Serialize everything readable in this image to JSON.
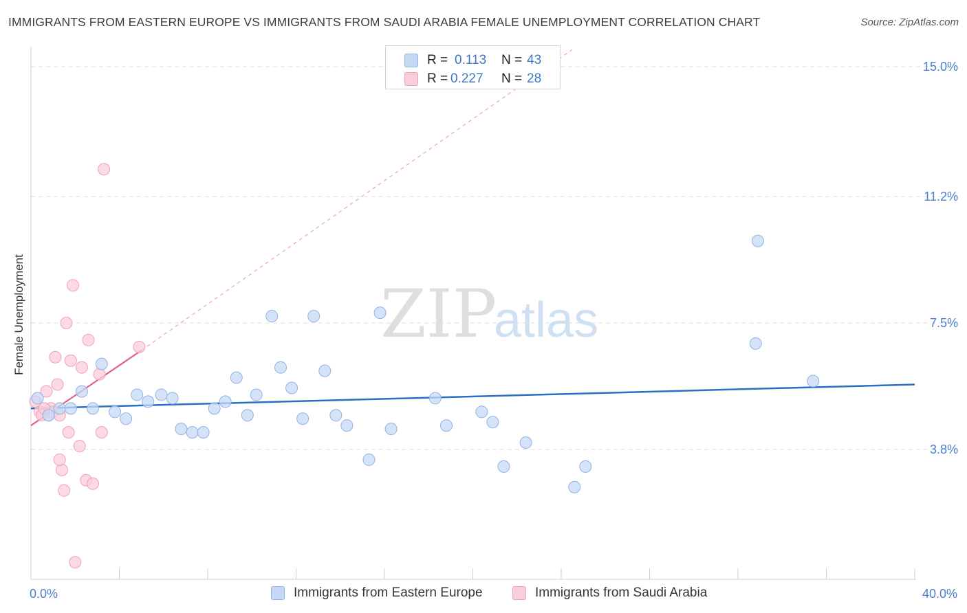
{
  "title": "IMMIGRANTS FROM EASTERN EUROPE VS IMMIGRANTS FROM SAUDI ARABIA FEMALE UNEMPLOYMENT CORRELATION CHART",
  "source": "Source: ZipAtlas.com",
  "watermark": {
    "zip": "ZIP",
    "atlas": "atlas"
  },
  "legend": {
    "r_label": "R =",
    "n_label": "N =",
    "rows": [
      {
        "r": "0.113",
        "n": "43"
      },
      {
        "r": "0.227",
        "n": "28"
      }
    ]
  },
  "colors": {
    "blue_fill": "#c5d9f5",
    "blue_stroke": "#8fb3e6",
    "blue_line": "#2b6fc4",
    "pink_fill": "#f9cdda",
    "pink_stroke": "#f0a0b8",
    "pink_line": "#e0608a"
  },
  "chart_data": {
    "type": "scatter",
    "title": "IMMIGRANTS FROM EASTERN EUROPE VS IMMIGRANTS FROM SAUDI ARABIA FEMALE UNEMPLOYMENT CORRELATION CHART",
    "xlabel": "",
    "ylabel": "Female Unemployment",
    "xlim": [
      0,
      40
    ],
    "ylim": [
      0,
      15.5
    ],
    "x_tick_labels": [
      {
        "value": 0,
        "label": "0.0%"
      },
      {
        "value": 40,
        "label": "40.0%"
      }
    ],
    "y_tick_labels": [
      {
        "value": 3.8,
        "label": "3.8%"
      },
      {
        "value": 7.5,
        "label": "7.5%"
      },
      {
        "value": 11.2,
        "label": "11.2%"
      },
      {
        "value": 15.0,
        "label": "15.0%"
      }
    ],
    "series": [
      {
        "name": "Immigrants from Eastern Europe",
        "color": "blue",
        "points": [
          [
            0.3,
            5.3
          ],
          [
            0.8,
            4.8
          ],
          [
            1.3,
            5.0
          ],
          [
            1.8,
            5.0
          ],
          [
            2.3,
            5.5
          ],
          [
            2.8,
            5.0
          ],
          [
            3.2,
            6.3
          ],
          [
            3.8,
            4.9
          ],
          [
            4.3,
            4.7
          ],
          [
            4.8,
            5.4
          ],
          [
            5.3,
            5.2
          ],
          [
            5.9,
            5.4
          ],
          [
            6.4,
            5.3
          ],
          [
            6.8,
            4.4
          ],
          [
            7.3,
            4.3
          ],
          [
            7.8,
            4.3
          ],
          [
            8.3,
            5.0
          ],
          [
            8.8,
            5.2
          ],
          [
            9.3,
            5.9
          ],
          [
            9.8,
            4.8
          ],
          [
            10.2,
            5.4
          ],
          [
            10.9,
            7.7
          ],
          [
            11.3,
            6.2
          ],
          [
            11.8,
            5.6
          ],
          [
            12.3,
            4.7
          ],
          [
            12.8,
            7.7
          ],
          [
            13.3,
            6.1
          ],
          [
            13.8,
            4.8
          ],
          [
            14.3,
            4.5
          ],
          [
            15.3,
            3.5
          ],
          [
            15.8,
            7.8
          ],
          [
            16.3,
            4.4
          ],
          [
            18.3,
            5.3
          ],
          [
            18.8,
            4.5
          ],
          [
            20.4,
            4.9
          ],
          [
            20.9,
            4.6
          ],
          [
            21.4,
            3.3
          ],
          [
            22.4,
            4.0
          ],
          [
            24.6,
            2.7
          ],
          [
            25.1,
            3.3
          ],
          [
            32.8,
            6.9
          ],
          [
            32.9,
            9.9
          ],
          [
            35.4,
            5.8
          ]
        ],
        "trend": {
          "x": [
            0,
            40
          ],
          "y": [
            5.0,
            5.7
          ]
        }
      },
      {
        "name": "Immigrants from Saudi Arabia",
        "color": "pink",
        "points": [
          [
            0.2,
            5.2
          ],
          [
            0.4,
            4.9
          ],
          [
            0.5,
            4.8
          ],
          [
            0.7,
            5.5
          ],
          [
            0.8,
            4.8
          ],
          [
            0.9,
            5.0
          ],
          [
            1.0,
            4.9
          ],
          [
            1.1,
            6.5
          ],
          [
            1.2,
            5.7
          ],
          [
            1.3,
            4.8
          ],
          [
            1.4,
            3.2
          ],
          [
            1.5,
            2.6
          ],
          [
            1.7,
            4.3
          ],
          [
            1.8,
            6.4
          ],
          [
            1.9,
            8.6
          ],
          [
            2.0,
            0.5
          ],
          [
            2.2,
            3.9
          ],
          [
            2.3,
            6.2
          ],
          [
            2.5,
            2.9
          ],
          [
            2.6,
            7.0
          ],
          [
            2.8,
            2.8
          ],
          [
            3.1,
            6.0
          ],
          [
            3.2,
            4.3
          ],
          [
            3.3,
            12.0
          ],
          [
            4.9,
            6.8
          ],
          [
            1.6,
            7.5
          ],
          [
            1.3,
            3.5
          ],
          [
            0.6,
            5.0
          ]
        ],
        "trend": {
          "x": [
            0,
            5.0
          ],
          "y": [
            4.5,
            6.7
          ]
        },
        "trend_extended": {
          "x": [
            5.0,
            24.5
          ],
          "y": [
            6.7,
            15.5
          ]
        }
      }
    ]
  },
  "bottom_legend": [
    {
      "label": "Immigrants from Eastern Europe"
    },
    {
      "label": "Immigrants from Saudi Arabia"
    }
  ]
}
